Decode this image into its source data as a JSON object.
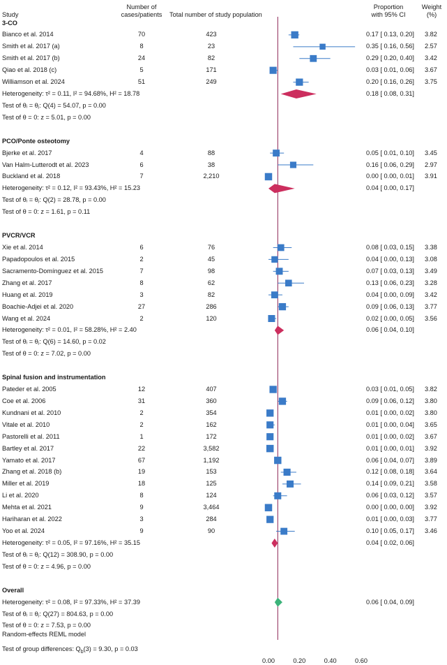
{
  "headers": {
    "study": "Study",
    "cases_line1": "Number of",
    "cases_line2": "cases/patients",
    "total": "Total number of study population",
    "prop_line1": "Proportion",
    "prop_line2": "with 95% CI",
    "weight_line1": "Weight",
    "weight_line2": "(%)"
  },
  "colors": {
    "box": "#3a7bc8",
    "ci": "#3a7bc8",
    "subgroup_diamond": "#cc2e5e",
    "overall_diamond": "#3cb37a",
    "refline": "#8b2252"
  },
  "chart_data": {
    "type": "forest",
    "xlim": [
      0.0,
      0.6
    ],
    "xticks": [
      "0.00",
      "0.20",
      "0.40",
      "0.60"
    ],
    "xtick_values": [
      0.0,
      0.2,
      0.4,
      0.6
    ],
    "reference_line": 0.06,
    "footer": "Random-effects REML model",
    "rows": [
      {
        "type": "group",
        "label": "3-CO"
      },
      {
        "type": "study",
        "label": "Bianco et al. 2014",
        "cases": "70",
        "total": "423",
        "est": 0.17,
        "lo": 0.13,
        "hi": 0.2,
        "ci_text": "0.17 [ 0.13, 0.20]",
        "weight": "3.82"
      },
      {
        "type": "study",
        "label": "Smith et al. 2017 (a)",
        "cases": "8",
        "total": "23",
        "est": 0.35,
        "lo": 0.16,
        "hi": 0.56,
        "ci_text": "0.35 [ 0.16, 0.56]",
        "weight": "2.57"
      },
      {
        "type": "study",
        "label": "Smith et al. 2017 (b)",
        "cases": "24",
        "total": "82",
        "est": 0.29,
        "lo": 0.2,
        "hi": 0.4,
        "ci_text": "0.29 [ 0.20, 0.40]",
        "weight": "3.42"
      },
      {
        "type": "study",
        "label": "Qiao et al. 2018 (c)",
        "cases": "5",
        "total": "171",
        "est": 0.03,
        "lo": 0.01,
        "hi": 0.06,
        "ci_text": "0.03 [ 0.01, 0.06]",
        "weight": "3.67"
      },
      {
        "type": "study",
        "label": "Williamson et al. 2024",
        "cases": "51",
        "total": "249",
        "est": 0.2,
        "lo": 0.16,
        "hi": 0.26,
        "ci_text": "0.20 [ 0.16, 0.26]",
        "weight": "3.75"
      },
      {
        "type": "subtotal",
        "label": "Heterogeneity: τ² = 0.11, I² = 94.68%, H² = 18.78",
        "est": 0.18,
        "lo": 0.08,
        "hi": 0.31,
        "ci_text": "0.18 [ 0.08, 0.31]",
        "color": "subgroup"
      },
      {
        "type": "text",
        "label": "Test of θᵢ = θⱼ: Q(4) = 54.07, p = 0.00"
      },
      {
        "type": "text",
        "label": "Test of θ = 0: z = 5.01, p = 0.00"
      },
      {
        "type": "blank"
      },
      {
        "type": "group",
        "label": "PCO/Ponte osteotomy"
      },
      {
        "type": "study",
        "label": "Bjerke et al. 2017",
        "cases": "4",
        "total": "88",
        "est": 0.05,
        "lo": 0.01,
        "hi": 0.1,
        "ci_text": "0.05 [ 0.01, 0.10]",
        "weight": "3.45"
      },
      {
        "type": "study",
        "label": "Van Halm-Lutterodt et al. 2023",
        "cases": "6",
        "total": "38",
        "est": 0.16,
        "lo": 0.06,
        "hi": 0.29,
        "ci_text": "0.16 [ 0.06, 0.29]",
        "weight": "2.97"
      },
      {
        "type": "study",
        "label": "Buckland et al. 2018",
        "cases": "7",
        "total": "2,210",
        "est": 0.0,
        "lo": 0.0,
        "hi": 0.01,
        "ci_text": "0.00 [ 0.00, 0.01]",
        "weight": "3.91"
      },
      {
        "type": "subtotal",
        "label": "Heterogeneity: τ² = 0.12, I² = 93.43%, H² = 15.23",
        "est": 0.04,
        "lo": 0.0,
        "hi": 0.17,
        "ci_text": "0.04 [ 0.00, 0.17]",
        "color": "subgroup"
      },
      {
        "type": "text",
        "label": "Test of θᵢ = θⱼ: Q(2) = 28.78, p = 0.00"
      },
      {
        "type": "text",
        "label": "Test of θ = 0: z = 1.61, p = 0.11"
      },
      {
        "type": "blank"
      },
      {
        "type": "group",
        "label": "PVCR/VCR"
      },
      {
        "type": "study",
        "label": "Xie et al. 2014",
        "cases": "6",
        "total": "76",
        "est": 0.08,
        "lo": 0.03,
        "hi": 0.15,
        "ci_text": "0.08 [ 0.03, 0.15]",
        "weight": "3.38"
      },
      {
        "type": "study",
        "label": "Papadopoulos et al. 2015",
        "cases": "2",
        "total": "45",
        "est": 0.04,
        "lo": 0.0,
        "hi": 0.13,
        "ci_text": "0.04 [ 0.00, 0.13]",
        "weight": "3.08"
      },
      {
        "type": "study",
        "label": "Sacramento-Domínguez et al. 2015",
        "cases": "7",
        "total": "98",
        "est": 0.07,
        "lo": 0.03,
        "hi": 0.13,
        "ci_text": "0.07 [ 0.03, 0.13]",
        "weight": "3.49"
      },
      {
        "type": "study",
        "label": "Zhang et al. 2017",
        "cases": "8",
        "total": "62",
        "est": 0.13,
        "lo": 0.06,
        "hi": 0.23,
        "ci_text": "0.13 [ 0.06, 0.23]",
        "weight": "3.28"
      },
      {
        "type": "study",
        "label": "Huang et al. 2019",
        "cases": "3",
        "total": "82",
        "est": 0.04,
        "lo": 0.0,
        "hi": 0.09,
        "ci_text": "0.04 [ 0.00, 0.09]",
        "weight": "3.42"
      },
      {
        "type": "study",
        "label": "Boachie-Adjei et al. 2020",
        "cases": "27",
        "total": "286",
        "est": 0.09,
        "lo": 0.06,
        "hi": 0.13,
        "ci_text": "0.09 [ 0.06, 0.13]",
        "weight": "3.77"
      },
      {
        "type": "study",
        "label": "Wang et al. 2024",
        "cases": "2",
        "total": "120",
        "est": 0.02,
        "lo": 0.0,
        "hi": 0.05,
        "ci_text": "0.02 [ 0.00, 0.05]",
        "weight": "3.56"
      },
      {
        "type": "subtotal",
        "label": "Heterogeneity: τ² = 0.01, I² = 58.28%, H² = 2.40",
        "est": 0.06,
        "lo": 0.04,
        "hi": 0.1,
        "ci_text": "0.06 [ 0.04, 0.10]",
        "color": "subgroup"
      },
      {
        "type": "text",
        "label": "Test of θᵢ = θⱼ: Q(6) = 14.60, p = 0.02"
      },
      {
        "type": "text",
        "label": "Test of θ = 0: z = 7.02, p = 0.00"
      },
      {
        "type": "blank"
      },
      {
        "type": "group",
        "label": "Spinal fusion and instrumentation"
      },
      {
        "type": "study",
        "label": "Pateder et al. 2005",
        "cases": "12",
        "total": "407",
        "est": 0.03,
        "lo": 0.01,
        "hi": 0.05,
        "ci_text": "0.03 [ 0.01, 0.05]",
        "weight": "3.82"
      },
      {
        "type": "study",
        "label": "Coe et al. 2006",
        "cases": "31",
        "total": "360",
        "est": 0.09,
        "lo": 0.06,
        "hi": 0.12,
        "ci_text": "0.09 [ 0.06, 0.12]",
        "weight": "3.80"
      },
      {
        "type": "study",
        "label": "Kundnani et al. 2010",
        "cases": "2",
        "total": "354",
        "est": 0.01,
        "lo": 0.0,
        "hi": 0.02,
        "ci_text": "0.01 [ 0.00, 0.02]",
        "weight": "3.80"
      },
      {
        "type": "study",
        "label": "Vitale et al. 2010",
        "cases": "2",
        "total": "162",
        "est": 0.01,
        "lo": 0.0,
        "hi": 0.04,
        "ci_text": "0.01 [ 0.00, 0.04]",
        "weight": "3.65"
      },
      {
        "type": "study",
        "label": "Pastorelli et al. 2011",
        "cases": "1",
        "total": "172",
        "est": 0.01,
        "lo": 0.0,
        "hi": 0.02,
        "ci_text": "0.01 [ 0.00, 0.02]",
        "weight": "3.67"
      },
      {
        "type": "study",
        "label": "Bartley et al. 2017",
        "cases": "22",
        "total": "3,582",
        "est": 0.01,
        "lo": 0.0,
        "hi": 0.01,
        "ci_text": "0.01 [ 0.00, 0.01]",
        "weight": "3.92"
      },
      {
        "type": "study",
        "label": "Yamato et al. 2017",
        "cases": "67",
        "total": "1,192",
        "est": 0.06,
        "lo": 0.04,
        "hi": 0.07,
        "ci_text": "0.06 [ 0.04, 0.07]",
        "weight": "3.89"
      },
      {
        "type": "study",
        "label": "Zhang et al. 2018 (b)",
        "cases": "19",
        "total": "153",
        "est": 0.12,
        "lo": 0.08,
        "hi": 0.18,
        "ci_text": "0.12 [ 0.08, 0.18]",
        "weight": "3.64"
      },
      {
        "type": "study",
        "label": "Miller et al. 2019",
        "cases": "18",
        "total": "125",
        "est": 0.14,
        "lo": 0.09,
        "hi": 0.21,
        "ci_text": "0.14 [ 0.09, 0.21]",
        "weight": "3.58"
      },
      {
        "type": "study",
        "label": "Li et al. 2020",
        "cases": "8",
        "total": "124",
        "est": 0.06,
        "lo": 0.03,
        "hi": 0.12,
        "ci_text": "0.06 [ 0.03, 0.12]",
        "weight": "3.57"
      },
      {
        "type": "study",
        "label": "Mehta et al. 2021",
        "cases": "9",
        "total": "3,464",
        "est": 0.0,
        "lo": 0.0,
        "hi": 0.0,
        "ci_text": "0.00 [ 0.00, 0.00]",
        "weight": "3.92"
      },
      {
        "type": "study",
        "label": "Hariharan et al. 2022",
        "cases": "3",
        "total": "284",
        "est": 0.01,
        "lo": 0.0,
        "hi": 0.03,
        "ci_text": "0.01 [ 0.00, 0.03]",
        "weight": "3.77"
      },
      {
        "type": "study",
        "label": "Yoo et al. 2024",
        "cases": "9",
        "total": "90",
        "est": 0.1,
        "lo": 0.05,
        "hi": 0.17,
        "ci_text": "0.10 [ 0.05, 0.17]",
        "weight": "3.46"
      },
      {
        "type": "subtotal",
        "label": "Heterogeneity: τ² = 0.05, I² = 97.16%, H² = 35.15",
        "est": 0.04,
        "lo": 0.02,
        "hi": 0.06,
        "ci_text": "0.04 [ 0.02, 0.06]",
        "color": "subgroup"
      },
      {
        "type": "text",
        "label": "Test of θᵢ = θⱼ: Q(12) = 308.90, p = 0.00"
      },
      {
        "type": "text",
        "label": "Test of θ = 0: z = 4.96, p = 0.00"
      },
      {
        "type": "blank"
      },
      {
        "type": "group",
        "label": "Overall"
      },
      {
        "type": "subtotal",
        "label": "Heterogeneity: τ² = 0.08, I² = 97.33%, H² = 37.39",
        "est": 0.06,
        "lo": 0.04,
        "hi": 0.09,
        "ci_text": "0.06 [ 0.04, 0.09]",
        "color": "overall"
      },
      {
        "type": "text",
        "label": "Test of θᵢ = θⱼ: Q(27) = 804.63, p = 0.00"
      },
      {
        "type": "text",
        "label": "Test of θ = 0: z = 7.53, p = 0.00"
      },
      {
        "type": "blank"
      },
      {
        "type": "text",
        "label": "Test of group differences: Qb(3) = 9.30, p = 0.03"
      }
    ]
  }
}
